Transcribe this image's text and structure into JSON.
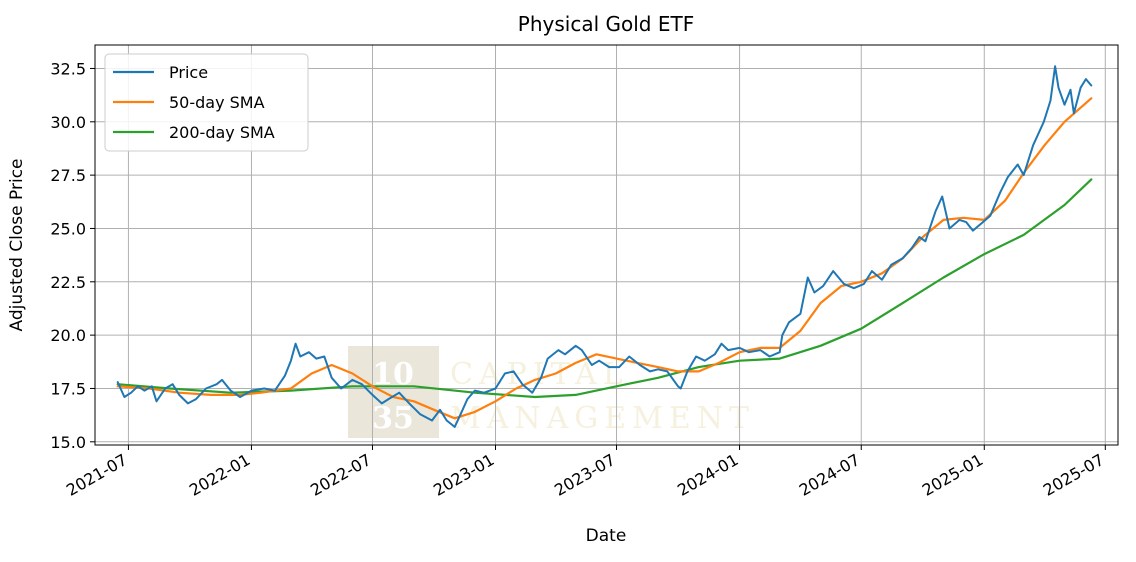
{
  "chart_data": {
    "type": "line",
    "title": "Physical Gold ETF",
    "xlabel": "Date",
    "ylabel": "Adjusted Close Price",
    "xlim": [
      "2021-05-12",
      "2025-07-20"
    ],
    "ylim": [
      14.85,
      33.6
    ],
    "x_ticks": [
      "2021-07",
      "2022-01",
      "2022-07",
      "2023-01",
      "2023-07",
      "2024-01",
      "2024-07",
      "2025-01",
      "2025-07"
    ],
    "y_ticks": [
      "15.0",
      "17.5",
      "20.0",
      "22.5",
      "25.0",
      "27.5",
      "30.0",
      "32.5"
    ],
    "grid": true,
    "legend_position": "top-left",
    "watermark": "10 35 CAPITAL MANAGEMENT",
    "series": [
      {
        "name": "Price",
        "color": "#1f77b4",
        "points": [
          [
            "2021-06-15",
            17.8
          ],
          [
            "2021-06-25",
            17.1
          ],
          [
            "2021-07-05",
            17.3
          ],
          [
            "2021-07-15",
            17.6
          ],
          [
            "2021-07-25",
            17.4
          ],
          [
            "2021-08-05",
            17.6
          ],
          [
            "2021-08-12",
            16.9
          ],
          [
            "2021-08-25",
            17.5
          ],
          [
            "2021-09-05",
            17.7
          ],
          [
            "2021-09-15",
            17.2
          ],
          [
            "2021-09-28",
            16.8
          ],
          [
            "2021-10-10",
            17.0
          ],
          [
            "2021-10-25",
            17.5
          ],
          [
            "2021-11-10",
            17.7
          ],
          [
            "2021-11-18",
            17.9
          ],
          [
            "2021-12-01",
            17.4
          ],
          [
            "2021-12-15",
            17.1
          ],
          [
            "2022-01-01",
            17.4
          ],
          [
            "2022-01-20",
            17.5
          ],
          [
            "2022-02-05",
            17.4
          ],
          [
            "2022-02-20",
            18.1
          ],
          [
            "2022-03-01",
            18.8
          ],
          [
            "2022-03-08",
            19.6
          ],
          [
            "2022-03-15",
            19.0
          ],
          [
            "2022-03-28",
            19.2
          ],
          [
            "2022-04-08",
            18.9
          ],
          [
            "2022-04-20",
            19.0
          ],
          [
            "2022-05-01",
            18.0
          ],
          [
            "2022-05-15",
            17.5
          ],
          [
            "2022-06-01",
            17.9
          ],
          [
            "2022-06-15",
            17.7
          ],
          [
            "2022-07-01",
            17.2
          ],
          [
            "2022-07-15",
            16.8
          ],
          [
            "2022-07-25",
            17.0
          ],
          [
            "2022-08-10",
            17.3
          ],
          [
            "2022-08-25",
            16.8
          ],
          [
            "2022-09-10",
            16.3
          ],
          [
            "2022-09-28",
            16.0
          ],
          [
            "2022-10-10",
            16.5
          ],
          [
            "2022-10-20",
            16.0
          ],
          [
            "2022-11-01",
            15.7
          ],
          [
            "2022-11-10",
            16.3
          ],
          [
            "2022-11-20",
            17.0
          ],
          [
            "2022-12-01",
            17.4
          ],
          [
            "2022-12-15",
            17.3
          ],
          [
            "2023-01-01",
            17.5
          ],
          [
            "2023-01-15",
            18.2
          ],
          [
            "2023-01-28",
            18.3
          ],
          [
            "2023-02-10",
            17.7
          ],
          [
            "2023-02-25",
            17.3
          ],
          [
            "2023-03-10",
            18.0
          ],
          [
            "2023-03-20",
            18.9
          ],
          [
            "2023-04-05",
            19.3
          ],
          [
            "2023-04-15",
            19.1
          ],
          [
            "2023-05-01",
            19.5
          ],
          [
            "2023-05-10",
            19.3
          ],
          [
            "2023-05-25",
            18.6
          ],
          [
            "2023-06-05",
            18.8
          ],
          [
            "2023-06-20",
            18.5
          ],
          [
            "2023-07-05",
            18.5
          ],
          [
            "2023-07-20",
            19.0
          ],
          [
            "2023-08-05",
            18.6
          ],
          [
            "2023-08-20",
            18.3
          ],
          [
            "2023-09-01",
            18.4
          ],
          [
            "2023-09-15",
            18.3
          ],
          [
            "2023-10-01",
            17.6
          ],
          [
            "2023-10-05",
            17.5
          ],
          [
            "2023-10-15",
            18.3
          ],
          [
            "2023-10-28",
            19.0
          ],
          [
            "2023-11-10",
            18.8
          ],
          [
            "2023-11-25",
            19.1
          ],
          [
            "2023-12-05",
            19.6
          ],
          [
            "2023-12-15",
            19.3
          ],
          [
            "2024-01-01",
            19.4
          ],
          [
            "2024-01-15",
            19.2
          ],
          [
            "2024-02-01",
            19.3
          ],
          [
            "2024-02-15",
            19.0
          ],
          [
            "2024-03-01",
            19.2
          ],
          [
            "2024-03-05",
            20.0
          ],
          [
            "2024-03-15",
            20.6
          ],
          [
            "2024-04-01",
            21.0
          ],
          [
            "2024-04-12",
            22.7
          ],
          [
            "2024-04-22",
            22.0
          ],
          [
            "2024-05-05",
            22.3
          ],
          [
            "2024-05-20",
            23.0
          ],
          [
            "2024-06-05",
            22.4
          ],
          [
            "2024-06-20",
            22.2
          ],
          [
            "2024-07-05",
            22.4
          ],
          [
            "2024-07-17",
            23.0
          ],
          [
            "2024-08-01",
            22.6
          ],
          [
            "2024-08-15",
            23.3
          ],
          [
            "2024-09-01",
            23.6
          ],
          [
            "2024-09-15",
            24.1
          ],
          [
            "2024-09-26",
            24.6
          ],
          [
            "2024-10-05",
            24.4
          ],
          [
            "2024-10-20",
            25.8
          ],
          [
            "2024-10-30",
            26.5
          ],
          [
            "2024-11-10",
            25.0
          ],
          [
            "2024-11-25",
            25.4
          ],
          [
            "2024-12-05",
            25.3
          ],
          [
            "2024-12-15",
            24.9
          ],
          [
            "2024-12-30",
            25.3
          ],
          [
            "2025-01-10",
            25.6
          ],
          [
            "2025-01-25",
            26.7
          ],
          [
            "2025-02-05",
            27.4
          ],
          [
            "2025-02-20",
            28.0
          ],
          [
            "2025-03-01",
            27.5
          ],
          [
            "2025-03-15",
            28.9
          ],
          [
            "2025-03-31",
            30.0
          ],
          [
            "2025-04-10",
            31.0
          ],
          [
            "2025-04-17",
            32.6
          ],
          [
            "2025-04-22",
            31.6
          ],
          [
            "2025-05-01",
            30.8
          ],
          [
            "2025-05-10",
            31.5
          ],
          [
            "2025-05-15",
            30.4
          ],
          [
            "2025-05-25",
            31.6
          ],
          [
            "2025-06-02",
            32.0
          ],
          [
            "2025-06-10",
            31.7
          ]
        ]
      },
      {
        "name": "50-day SMA",
        "color": "#ff7f0e",
        "points": [
          [
            "2021-06-15",
            17.6
          ],
          [
            "2021-08-01",
            17.5
          ],
          [
            "2021-09-15",
            17.3
          ],
          [
            "2021-11-01",
            17.2
          ],
          [
            "2021-12-15",
            17.2
          ],
          [
            "2022-01-15",
            17.3
          ],
          [
            "2022-03-01",
            17.5
          ],
          [
            "2022-04-01",
            18.2
          ],
          [
            "2022-05-01",
            18.6
          ],
          [
            "2022-06-01",
            18.2
          ],
          [
            "2022-07-01",
            17.6
          ],
          [
            "2022-08-01",
            17.1
          ],
          [
            "2022-09-01",
            16.9
          ],
          [
            "2022-10-01",
            16.5
          ],
          [
            "2022-11-01",
            16.1
          ],
          [
            "2022-12-01",
            16.4
          ],
          [
            "2023-01-01",
            16.9
          ],
          [
            "2023-02-01",
            17.5
          ],
          [
            "2023-03-01",
            17.9
          ],
          [
            "2023-04-01",
            18.2
          ],
          [
            "2023-05-01",
            18.7
          ],
          [
            "2023-06-01",
            19.1
          ],
          [
            "2023-07-01",
            18.9
          ],
          [
            "2023-08-01",
            18.7
          ],
          [
            "2023-09-01",
            18.5
          ],
          [
            "2023-10-01",
            18.3
          ],
          [
            "2023-11-01",
            18.3
          ],
          [
            "2023-12-01",
            18.7
          ],
          [
            "2024-01-01",
            19.2
          ],
          [
            "2024-02-01",
            19.4
          ],
          [
            "2024-03-01",
            19.4
          ],
          [
            "2024-04-01",
            20.2
          ],
          [
            "2024-05-01",
            21.5
          ],
          [
            "2024-06-01",
            22.3
          ],
          [
            "2024-07-01",
            22.5
          ],
          [
            "2024-08-01",
            22.9
          ],
          [
            "2024-09-01",
            23.6
          ],
          [
            "2024-10-01",
            24.6
          ],
          [
            "2024-11-01",
            25.4
          ],
          [
            "2024-12-01",
            25.5
          ],
          [
            "2025-01-01",
            25.4
          ],
          [
            "2025-02-01",
            26.3
          ],
          [
            "2025-03-01",
            27.6
          ],
          [
            "2025-04-01",
            28.9
          ],
          [
            "2025-05-01",
            30.0
          ],
          [
            "2025-06-10",
            31.1
          ]
        ]
      },
      {
        "name": "200-day SMA",
        "color": "#2ca02c",
        "points": [
          [
            "2021-06-15",
            17.7
          ],
          [
            "2021-09-01",
            17.5
          ],
          [
            "2021-12-01",
            17.3
          ],
          [
            "2022-03-01",
            17.4
          ],
          [
            "2022-06-01",
            17.6
          ],
          [
            "2022-09-01",
            17.6
          ],
          [
            "2022-12-01",
            17.3
          ],
          [
            "2023-03-01",
            17.1
          ],
          [
            "2023-05-01",
            17.2
          ],
          [
            "2023-07-01",
            17.6
          ],
          [
            "2023-09-01",
            18.0
          ],
          [
            "2023-11-01",
            18.5
          ],
          [
            "2024-01-01",
            18.8
          ],
          [
            "2024-03-01",
            18.9
          ],
          [
            "2024-05-01",
            19.5
          ],
          [
            "2024-07-01",
            20.3
          ],
          [
            "2024-09-01",
            21.5
          ],
          [
            "2024-11-01",
            22.7
          ],
          [
            "2025-01-01",
            23.8
          ],
          [
            "2025-03-01",
            24.7
          ],
          [
            "2025-05-01",
            26.1
          ],
          [
            "2025-06-10",
            27.3
          ]
        ]
      }
    ]
  }
}
